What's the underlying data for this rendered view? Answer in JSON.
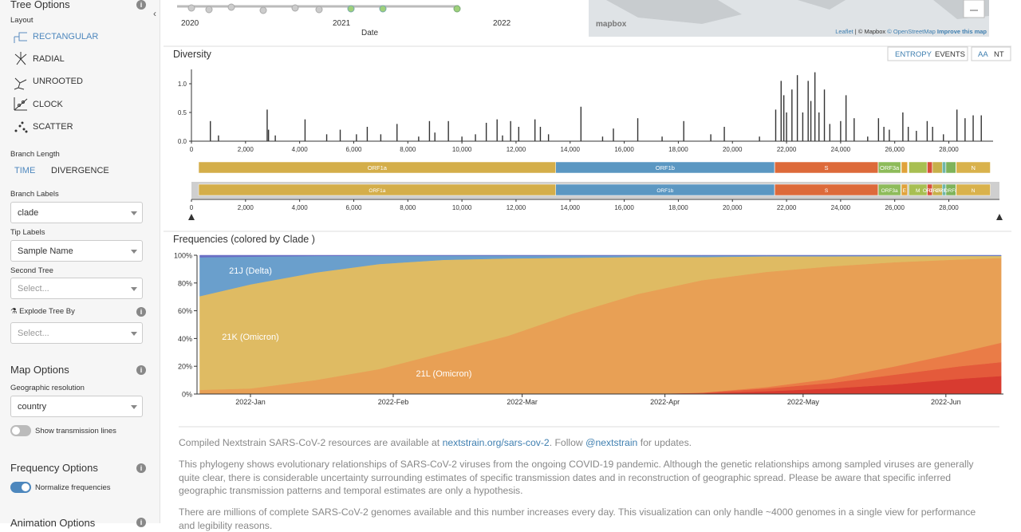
{
  "sidebar": {
    "tree_options": "Tree Options",
    "layout": "Layout",
    "layouts": [
      "RECTANGULAR",
      "RADIAL",
      "UNROOTED",
      "CLOCK",
      "SCATTER"
    ],
    "branch_length": "Branch Length",
    "branch_length_options": [
      "TIME",
      "DIVERGENCE"
    ],
    "branch_labels": "Branch Labels",
    "branch_labels_value": "clade",
    "tip_labels": "Tip Labels",
    "tip_labels_value": "Sample Name",
    "second_tree": "Second Tree",
    "second_tree_value": "Select...",
    "explode_tree_by": "Explode Tree By",
    "explode_value": "Select...",
    "map_options": "Map Options",
    "geo_resolution": "Geographic resolution",
    "geo_value": "country",
    "transmission": "Show transmission lines",
    "frequency_options": "Frequency Options",
    "normalize": "Normalize frequencies",
    "animation_options": "Animation Options"
  },
  "tree_axis": {
    "ticks": [
      "2020",
      "2021",
      "2022"
    ],
    "label": "Date"
  },
  "map": {
    "logo": "mapbox",
    "attribution": [
      "Leaflet",
      "© Mapbox",
      "© OpenStreetMap",
      "Improve this map"
    ]
  },
  "chart_data": [
    {
      "type": "bar",
      "title": "Diversity",
      "buttons": [
        "ENTROPY",
        "EVENTS",
        "AA",
        "NT"
      ],
      "color": "#333333",
      "x": [
        700,
        1000,
        2800,
        2850,
        3100,
        4200,
        5000,
        5500,
        6100,
        6500,
        7000,
        7600,
        8400,
        8800,
        9000,
        9500,
        10000,
        10500,
        10900,
        11300,
        11500,
        11800,
        12100,
        12700,
        12900,
        13200,
        14400,
        15200,
        15600,
        16500,
        17400,
        18200,
        19200,
        19700,
        21000,
        21600,
        21800,
        21900,
        22000,
        22200,
        22400,
        22600,
        22800,
        22900,
        23050,
        23200,
        23400,
        23600,
        24000,
        24200,
        24500,
        25000,
        25400,
        25600,
        25800,
        26300,
        26500,
        26800,
        27200,
        27400,
        27800,
        28300,
        28600,
        28900,
        29200
      ],
      "values": [
        0.35,
        0.1,
        0.55,
        0.2,
        0.1,
        0.38,
        0.12,
        0.2,
        0.12,
        0.25,
        0.12,
        0.3,
        0.08,
        0.35,
        0.15,
        0.35,
        0.08,
        0.12,
        0.32,
        0.38,
        0.1,
        0.35,
        0.25,
        0.38,
        0.25,
        0.12,
        0.6,
        0.08,
        0.22,
        0.4,
        0.08,
        0.35,
        0.12,
        0.25,
        0.08,
        0.55,
        1.05,
        0.8,
        0.5,
        0.9,
        1.15,
        0.5,
        1.05,
        0.7,
        1.2,
        0.5,
        0.9,
        0.3,
        0.35,
        0.8,
        0.4,
        0.08,
        0.4,
        0.25,
        0.2,
        0.5,
        0.25,
        0.18,
        0.35,
        0.25,
        0.12,
        0.55,
        0.4,
        0.45,
        0.45
      ],
      "xlim": [
        0,
        29400
      ],
      "ylim": [
        0,
        1.25
      ],
      "xticks": [
        0,
        {
          "value": 2000,
          "label": "2,000"
        },
        {
          "value": 4000,
          "label": "4,000"
        },
        {
          "value": 6000,
          "label": "6,000"
        },
        {
          "value": 8000,
          "label": "8,000"
        },
        {
          "value": 10000,
          "label": "10,000"
        },
        {
          "value": 12000,
          "label": "12,000"
        },
        {
          "value": 14000,
          "label": "14,000"
        },
        {
          "value": 16000,
          "label": "16,000"
        },
        {
          "value": 18000,
          "label": "18,000"
        },
        {
          "value": 20000,
          "label": "20,000"
        },
        {
          "value": 22000,
          "label": "22,000"
        },
        {
          "value": 24000,
          "label": "24,000"
        },
        {
          "value": 26000,
          "label": "26,000"
        },
        {
          "value": 28000,
          "label": "28,000"
        }
      ],
      "yticks": [
        {
          "value": 0,
          "label": "0.0"
        },
        {
          "value": 0.5,
          "label": "0.5"
        },
        {
          "value": 1,
          "label": "1.0"
        }
      ],
      "genes": [
        {
          "name": "ORF1a",
          "start": 266,
          "end": 13468,
          "color": "#d4ae4a"
        },
        {
          "name": "ORF1b",
          "start": 13468,
          "end": 21555,
          "color": "#5b97c2"
        },
        {
          "name": "S",
          "start": 21563,
          "end": 25384,
          "color": "#dd6a3a"
        },
        {
          "name": "ORF3a",
          "start": 25393,
          "end": 26220,
          "color": "#8dbb5a"
        },
        {
          "name": "E",
          "start": 26245,
          "end": 26472,
          "color": "#e0a23a"
        },
        {
          "name": "M",
          "start": 26523,
          "end": 27191,
          "color": "#a8bf52"
        },
        {
          "name": "ORF6",
          "start": 27202,
          "end": 27387,
          "color": "#d8503a"
        },
        {
          "name": "ORF7a",
          "start": 27394,
          "end": 27759,
          "color": "#c7b04a"
        },
        {
          "name": "ORF7b",
          "start": 27756,
          "end": 27887,
          "color": "#6fb7a8"
        },
        {
          "name": "ORF8",
          "start": 27894,
          "end": 28259,
          "color": "#7fb35a"
        },
        {
          "name": "N",
          "start": 28274,
          "end": 29533,
          "color": "#d9b24c"
        }
      ]
    },
    {
      "type": "area",
      "title": "Frequencies (colored by Clade )",
      "stacked": true,
      "x": [
        -11,
        0,
        14,
        28,
        42,
        56,
        70,
        84,
        98,
        112,
        126,
        140,
        154,
        163
      ],
      "series": [
        {
          "color": "#d83b30",
          "values": [
            0,
            0,
            0,
            0,
            0,
            0,
            0,
            0,
            0.5,
            2,
            4,
            7,
            11,
            13
          ]
        },
        {
          "color": "#e45a3b",
          "values": [
            0,
            0,
            0,
            0,
            0,
            0,
            0,
            0,
            0.5,
            2,
            4,
            7,
            9,
            10
          ]
        },
        {
          "color": "#ea7c47",
          "values": [
            0,
            0,
            0,
            0,
            0,
            0,
            0,
            0,
            0,
            1,
            3,
            6,
            10,
            14
          ]
        },
        {
          "name": "21L (Omicron)",
          "color": "#e8a055",
          "values": [
            3,
            4,
            10,
            18,
            30,
            42,
            58,
            72,
            81,
            83,
            81,
            75,
            67,
            61
          ]
        },
        {
          "name": "21K (Omicron)",
          "color": "#dfbb63",
          "values": [
            67.5,
            75,
            77.5,
            75.7,
            66.7,
            55.7,
            40.2,
            26.7,
            16.7,
            11.2,
            7.2,
            4.4,
            2.5,
            1.5
          ]
        },
        {
          "name": "21J (Delta)",
          "color": "#6a9fcc",
          "values": [
            28,
            20,
            12,
            6,
            3,
            2,
            1.5,
            1,
            1,
            0.5,
            0.5,
            0.3,
            0.2,
            0.2
          ]
        },
        {
          "color": "#6a6fc4",
          "values": [
            1.5,
            1,
            0.5,
            0.3,
            0.3,
            0.3,
            0.3,
            0.3,
            0.3,
            0.3,
            0.3,
            0.3,
            0.3,
            0.3
          ]
        }
      ],
      "xlim": [
        -11.6,
        163.5
      ],
      "ylim": [
        0,
        100
      ],
      "xticks": [
        {
          "value": 0,
          "label": "2022-Jan"
        },
        {
          "value": 31,
          "label": "2022-Feb"
        },
        {
          "value": 59,
          "label": "2022-Mar"
        },
        {
          "value": 90,
          "label": "2022-Apr"
        },
        {
          "value": 120,
          "label": "2022-May"
        },
        {
          "value": 151,
          "label": "2022-Jun"
        }
      ],
      "yticks": [
        {
          "value": 0,
          "label": "0%"
        },
        {
          "value": 20,
          "label": "20%"
        },
        {
          "value": 40,
          "label": "40%"
        },
        {
          "value": 60,
          "label": "60%"
        },
        {
          "value": 80,
          "label": "80%"
        },
        {
          "value": 100,
          "label": "100%"
        }
      ]
    }
  ],
  "footer": {
    "p1_pre": "Compiled Nextstrain SARS-CoV-2 resources are available at",
    "p1_link1": "nextstrain.org/sars-cov-2",
    "p1_mid": ". Follow",
    "p1_link2": "@nextstrain",
    "p1_post": "for updates.",
    "p2": "This phylogeny shows evolutionary relationships of SARS-CoV-2 viruses from the ongoing COVID-19 pandemic. Although the genetic relationships among sampled viruses are generally quite clear, there is considerable uncertainty surrounding estimates of specific transmission dates and in reconstruction of geographic spread. Please be aware that specific inferred geographic transmission patterns and temporal estimates are only a hypothesis.",
    "p3": "There are millions of complete SARS-CoV-2 genomes available and this number increases every day. This visualization can only handle ~4000 genomes in a single view for performance and legibility reasons."
  }
}
